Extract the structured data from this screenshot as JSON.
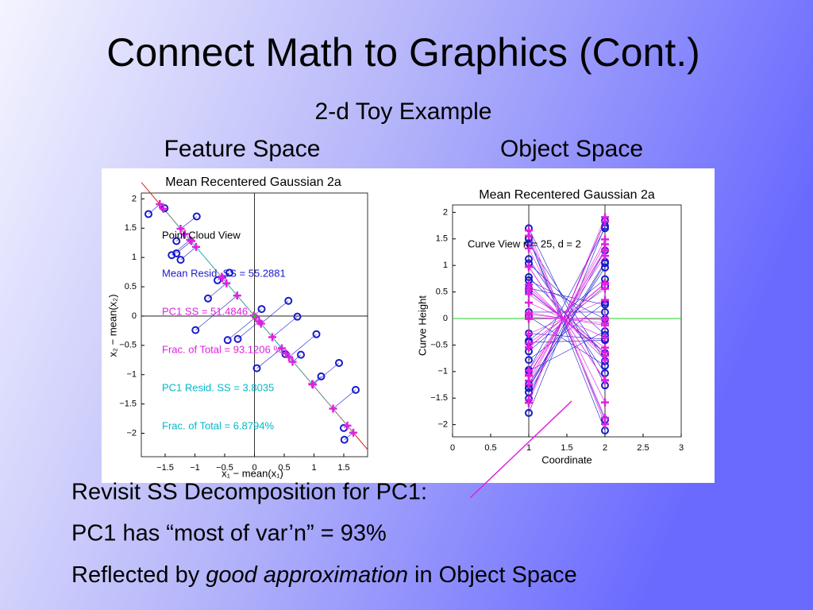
{
  "title": "Connect Math to Graphics (Cont.)",
  "subtitle": "2-d Toy Example",
  "panel_labels": [
    "Feature Space",
    "Object Space"
  ],
  "bullets": [
    "Revisit SS Decomposition for PC1:",
    "PC1 has “most of var’n”  =  93%",
    [
      "Reflected by ",
      "good approximation",
      " in Object Space"
    ]
  ],
  "chart_data": [
    {
      "type": "scatter",
      "title": "Mean Recentered Gaussian 2a",
      "x_label": "x₁ − mean(x₁)",
      "y_label": "x₂ − mean(x₂)",
      "xlim": [
        -1.9,
        1.9
      ],
      "ylim": [
        -2.4,
        2.1
      ],
      "xticks": [
        {
          "value": -1.5,
          "label": "−1.5"
        },
        {
          "value": -1,
          "label": "−1"
        },
        {
          "value": -0.5,
          "label": "−0.5"
        },
        0,
        0.5,
        1,
        1.5
      ],
      "yticks": [
        2,
        1.5,
        1,
        0.5,
        0,
        {
          "value": -0.5,
          "label": "−0.5"
        },
        {
          "value": -1,
          "label": "−1"
        },
        {
          "value": -1.5,
          "label": "−1.5"
        },
        {
          "value": -2,
          "label": "−2"
        }
      ],
      "series": [
        {
          "marker": "o",
          "color": "#1a1acc",
          "x": [
            -1.51,
            -1.78,
            -0.97,
            -1.31,
            -1.39,
            -1.31,
            -1.24,
            -0.42,
            -0.78,
            0.57,
            -0.99,
            0.72,
            -0.45,
            -0.28,
            0.04,
            1.04,
            0.52,
            0.78,
            1.12,
            1.42,
            1.7,
            1.5,
            1.51,
            -0.62,
            0.12
          ],
          "y": [
            1.84,
            1.74,
            1.7,
            1.28,
            1.04,
            1.07,
            0.96,
            0.74,
            0.3,
            0.26,
            -0.24,
            -0.01,
            -0.41,
            -0.39,
            -0.89,
            -0.31,
            -0.65,
            -0.66,
            -1.03,
            -0.8,
            -1.26,
            -1.91,
            -2.11,
            0.61,
            0.12
          ]
        },
        {
          "marker": "+",
          "color": "#e020e0",
          "x": [
            -1.53,
            -1.59,
            -1.24,
            -1.17,
            -1.08,
            -1.06,
            -0.98,
            -0.54,
            -0.47,
            0.11,
            -0.29,
            0.3,
            0.02,
            0.08,
            0.46,
            0.58,
            0.53,
            0.64,
            0.97,
            0.98,
            1.32,
            1.56,
            1.66,
            -0.55,
            -0.01
          ],
          "y": [
            1.83,
            1.91,
            1.49,
            1.4,
            1.3,
            1.28,
            1.18,
            0.65,
            0.56,
            -0.13,
            0.35,
            -0.36,
            -0.02,
            -0.09,
            -0.55,
            -0.7,
            -0.64,
            -0.78,
            -1.16,
            -1.17,
            -1.58,
            -1.87,
            -1.99,
            0.67,
            0.01
          ]
        }
      ],
      "annotations": [
        {
          "text": "Point Cloud View",
          "color": "#000000"
        },
        {
          "text": "Mean Resid. SS = 55.2881",
          "color": "#1a1acc"
        },
        {
          "text": "PC1 SS = 51.4846",
          "color": "#e020e0"
        },
        {
          "text": "Frac. of Total = 93.1206 %",
          "color": "#e020e0"
        },
        {
          "text": "PC1 Resid. SS = 3.8035",
          "color": "#00b8c8"
        },
        {
          "text": "Frac. of Total = 6.8794%",
          "color": "#00b8c8"
        }
      ]
    },
    {
      "type": "parallel",
      "title": "Mean Recentered Gaussian 2a",
      "x_label": "Coordinate",
      "y_label": "Curve Height",
      "xlim": [
        0,
        3
      ],
      "ylim": [
        -2.23,
        2.14
      ],
      "xticks": [
        0,
        0.5,
        1,
        1.5,
        2,
        2.5,
        3
      ],
      "yticks": [
        2,
        1.5,
        1,
        0.5,
        0,
        {
          "value": -0.5,
          "label": "−0.5"
        },
        {
          "value": -1,
          "label": "−1"
        },
        {
          "value": -1.5,
          "label": "−1.5"
        },
        {
          "value": -2,
          "label": "−2"
        }
      ],
      "coordinates": [
        1,
        2
      ],
      "annotations": [
        {
          "text": "Curve View n = 25, d = 2",
          "color": "#000000"
        }
      ]
    }
  ]
}
